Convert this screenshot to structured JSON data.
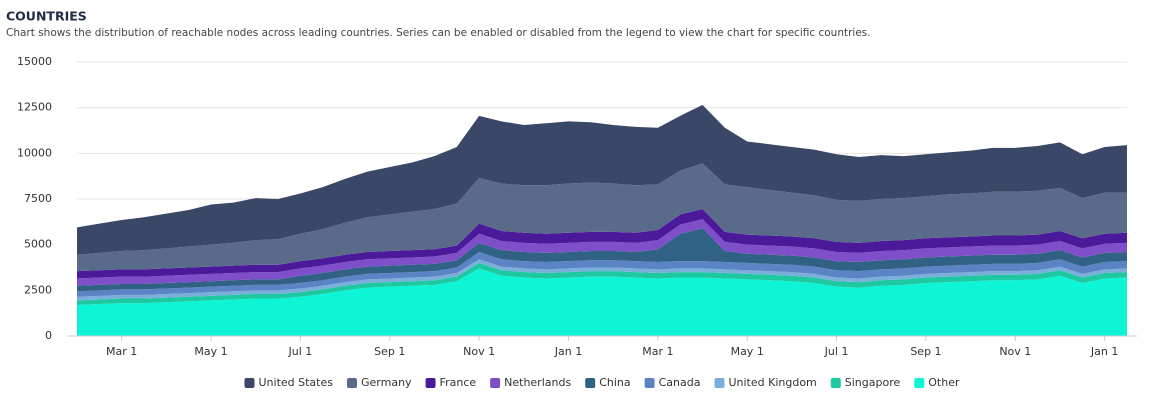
{
  "chart_data": {
    "type": "stacked-area",
    "title": "COUNTRIES",
    "subtitle": "Chart shows the distribution of reachable nodes across leading countries. Series can be enabled or disabled from the legend to view the chart for specific countries.",
    "categories": [
      null,
      null,
      "Mar 1",
      null,
      null,
      null,
      "May 1",
      null,
      null,
      null,
      "Jul 1",
      null,
      null,
      null,
      "Sep 1",
      null,
      null,
      null,
      "Nov 1",
      null,
      null,
      null,
      "Jan 1",
      null,
      null,
      null,
      "Mar 1",
      null,
      null,
      null,
      "May 1",
      null,
      null,
      null,
      "Jul 1",
      null,
      null,
      null,
      "Sep 1",
      null,
      null,
      null,
      "Nov 1",
      null,
      null,
      null,
      "Jan 1",
      null
    ],
    "ylim": [
      0,
      15000
    ],
    "yticks": [
      0,
      2500,
      5000,
      7500,
      10000,
      12500,
      15000
    ],
    "grid": true,
    "legend": "bottom",
    "series": [
      {
        "name": "United States",
        "color": "#3a4767",
        "values": [
          1500,
          1600,
          1700,
          1800,
          1900,
          2000,
          2200,
          2200,
          2300,
          2200,
          2200,
          2300,
          2400,
          2500,
          2600,
          2700,
          2900,
          3100,
          3400,
          3400,
          3300,
          3400,
          3400,
          3300,
          3200,
          3200,
          3100,
          3000,
          3200,
          3100,
          2500,
          2500,
          2500,
          2500,
          2500,
          2400,
          2400,
          2300,
          2300,
          2300,
          2350,
          2400,
          2400,
          2450,
          2500,
          2400,
          2500,
          2600
        ]
      },
      {
        "name": "Germany",
        "color": "#5a6a8a",
        "values": [
          900,
          950,
          1000,
          1050,
          1100,
          1150,
          1200,
          1250,
          1350,
          1400,
          1500,
          1600,
          1750,
          1900,
          2000,
          2100,
          2200,
          2300,
          2500,
          2600,
          2600,
          2650,
          2700,
          2700,
          2650,
          2600,
          2500,
          2400,
          2500,
          2600,
          2600,
          2500,
          2400,
          2350,
          2300,
          2300,
          2300,
          2300,
          2300,
          2350,
          2350,
          2400,
          2400,
          2400,
          2350,
          2200,
          2250,
          2200
        ]
      },
      {
        "name": "France",
        "color": "#4b1a9a",
        "values": [
          400,
          400,
          400,
          400,
          400,
          400,
          400,
          400,
          400,
          400,
          400,
          400,
          400,
          400,
          400,
          400,
          400,
          400,
          550,
          550,
          550,
          550,
          550,
          550,
          550,
          550,
          550,
          550,
          550,
          550,
          550,
          550,
          550,
          550,
          550,
          550,
          550,
          550,
          550,
          550,
          550,
          550,
          550,
          550,
          550,
          550,
          550,
          550
        ]
      },
      {
        "name": "Netherlands",
        "color": "#7e4fc8",
        "values": [
          400,
          400,
          400,
          400,
          400,
          400,
          400,
          400,
          400,
          400,
          400,
          400,
          400,
          400,
          400,
          400,
          400,
          400,
          500,
          500,
          500,
          500,
          500,
          500,
          500,
          500,
          500,
          500,
          500,
          500,
          500,
          500,
          500,
          500,
          500,
          500,
          500,
          500,
          500,
          500,
          500,
          500,
          500,
          500,
          500,
          500,
          500,
          500
        ]
      },
      {
        "name": "China",
        "color": "#2f6284",
        "values": [
          300,
          300,
          300,
          300,
          300,
          300,
          300,
          300,
          300,
          300,
          400,
          400,
          400,
          400,
          400,
          400,
          400,
          400,
          500,
          500,
          500,
          500,
          500,
          500,
          500,
          500,
          700,
          1500,
          1800,
          600,
          500,
          500,
          500,
          500,
          500,
          500,
          500,
          500,
          500,
          500,
          500,
          500,
          500,
          500,
          500,
          500,
          500,
          500
        ]
      },
      {
        "name": "Canada",
        "color": "#5b84c4",
        "values": [
          300,
          300,
          300,
          300,
          300,
          300,
          300,
          300,
          300,
          300,
          300,
          300,
          300,
          300,
          300,
          300,
          300,
          300,
          400,
          400,
          400,
          400,
          400,
          400,
          400,
          400,
          400,
          400,
          400,
          400,
          400,
          400,
          400,
          400,
          400,
          400,
          400,
          400,
          400,
          400,
          400,
          400,
          400,
          400,
          400,
          400,
          400,
          400
        ]
      },
      {
        "name": "United Kingdom",
        "color": "#7aaedb",
        "values": [
          200,
          200,
          200,
          200,
          200,
          200,
          200,
          200,
          200,
          200,
          200,
          200,
          200,
          200,
          200,
          200,
          200,
          200,
          200,
          200,
          200,
          200,
          200,
          200,
          200,
          200,
          200,
          200,
          200,
          200,
          200,
          200,
          200,
          200,
          200,
          200,
          200,
          200,
          200,
          200,
          200,
          200,
          200,
          200,
          200,
          200,
          200,
          200
        ]
      },
      {
        "name": "Singapore",
        "color": "#1ec8a0",
        "values": [
          250,
          250,
          250,
          250,
          250,
          250,
          250,
          250,
          250,
          250,
          250,
          250,
          250,
          250,
          250,
          250,
          250,
          250,
          300,
          300,
          300,
          300,
          300,
          300,
          300,
          300,
          300,
          300,
          300,
          300,
          300,
          300,
          300,
          300,
          300,
          300,
          300,
          300,
          300,
          300,
          300,
          300,
          300,
          300,
          300,
          300,
          300,
          300
        ]
      },
      {
        "name": "Other",
        "color": "#0ef5d6",
        "values": [
          1700,
          1750,
          1800,
          1800,
          1850,
          1900,
          1950,
          2000,
          2050,
          2050,
          2150,
          2300,
          2500,
          2650,
          2700,
          2750,
          2800,
          3000,
          3700,
          3300,
          3200,
          3150,
          3200,
          3250,
          3250,
          3200,
          3150,
          3200,
          3200,
          3150,
          3100,
          3050,
          3000,
          2900,
          2700,
          2650,
          2750,
          2800,
          2900,
          2950,
          3000,
          3050,
          3050,
          3100,
          3300,
          2900,
          3150,
          3200
        ]
      }
    ]
  }
}
